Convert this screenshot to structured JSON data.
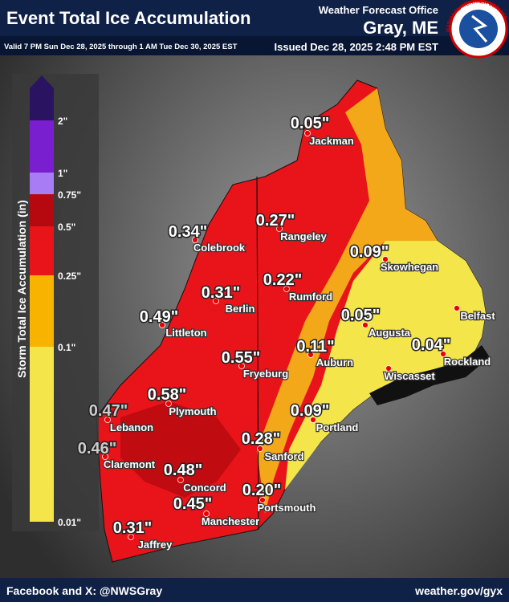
{
  "header": {
    "title": "Event Total Ice Accumulation",
    "valid": "Valid 7 PM Sun Dec 28, 2025 through 1 AM Tue Dec 30, 2025 EST",
    "office": "Weather Forecast Office",
    "location": "Gray, ME",
    "issued": "Issued Dec 28, 2025 2:48 PM EST",
    "logo_text": "NATIONAL WEATHER SERVICE"
  },
  "legend": {
    "title": "Storm Total Ice Accumulation (in)",
    "labels": [
      "2\"",
      "1\"",
      "0.75\"",
      "0.5\"",
      "0.25\"",
      "0.1\"",
      "0.01\""
    ]
  },
  "cities": [
    {
      "name": "Jackman",
      "value": "0.05\""
    },
    {
      "name": "Colebrook",
      "value": "0.34\""
    },
    {
      "name": "Rangeley",
      "value": "0.27\""
    },
    {
      "name": "Skowhegan",
      "value": "0.09\""
    },
    {
      "name": "Rumford",
      "value": "0.22\""
    },
    {
      "name": "Berlin",
      "value": "0.31\""
    },
    {
      "name": "Littleton",
      "value": "0.49\""
    },
    {
      "name": "Augusta",
      "value": "0.05\""
    },
    {
      "name": "Belfast"
    },
    {
      "name": "Auburn",
      "value": "0.11\""
    },
    {
      "name": "Rockland",
      "value": "0.04\""
    },
    {
      "name": "Wiscasset"
    },
    {
      "name": "Fryeburg",
      "value": "0.55\""
    },
    {
      "name": "Plymouth",
      "value": "0.58\""
    },
    {
      "name": "Lebanon",
      "value": "0.47\""
    },
    {
      "name": "Portland",
      "value": "0.09\""
    },
    {
      "name": "Sanford",
      "value": "0.28\""
    },
    {
      "name": "Claremont",
      "value": "0.46\""
    },
    {
      "name": "Concord",
      "value": "0.48\""
    },
    {
      "name": "Portsmouth",
      "value": "0.20\""
    },
    {
      "name": "Manchester",
      "value": "0.45\""
    },
    {
      "name": "Jaffrey",
      "value": "0.31\""
    }
  ],
  "footer": {
    "social": "Facebook and X: @NWSGray",
    "website": "weather.gov/gyx"
  }
}
